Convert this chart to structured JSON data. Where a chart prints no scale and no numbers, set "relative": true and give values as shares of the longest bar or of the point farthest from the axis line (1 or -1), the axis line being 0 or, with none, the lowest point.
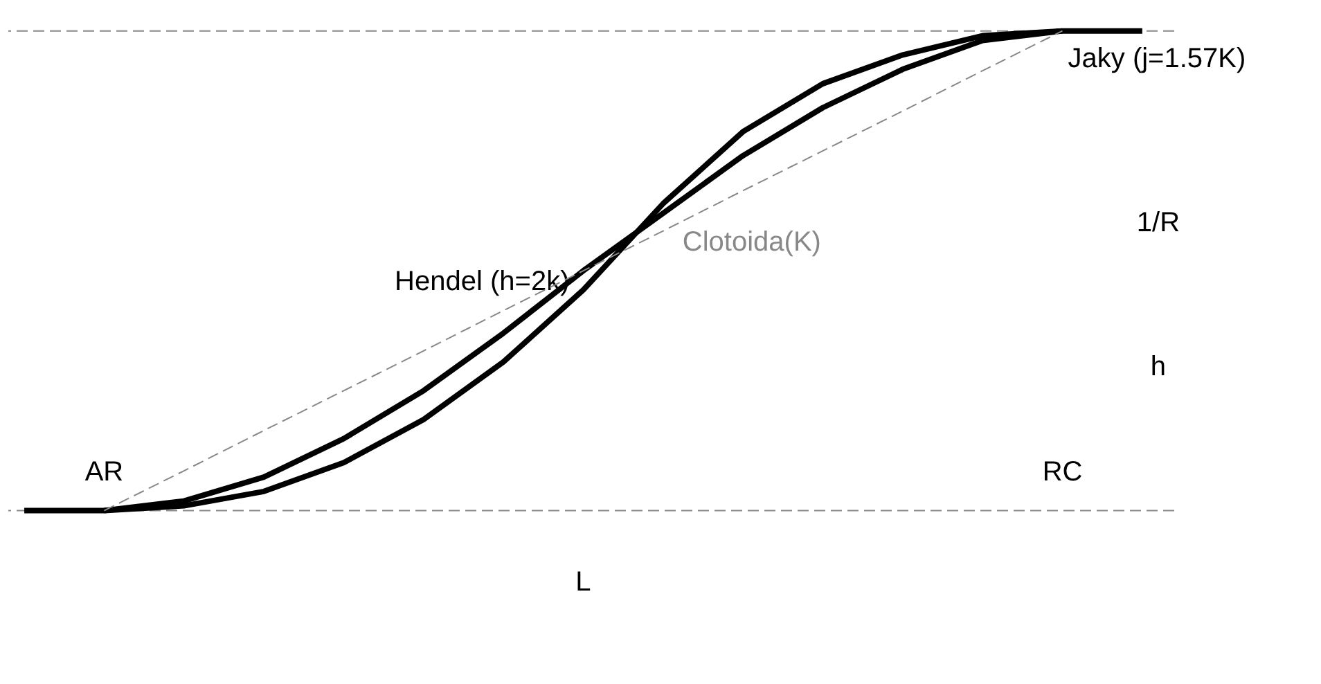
{
  "chart_data": {
    "type": "line",
    "relative": true,
    "categories": [
      null,
      null,
      null,
      null,
      null,
      null,
      null,
      null,
      null,
      null,
      null,
      null,
      null,
      null,
      null
    ],
    "series": [
      {
        "name": "Hendel (h=2k)",
        "color": "#000000",
        "line_style": "solid",
        "values": [
          0,
          0,
          0.01,
          0.04,
          0.1,
          0.19,
          0.31,
          0.46,
          0.64,
          0.79,
          0.89,
          0.95,
          0.99,
          1,
          1
        ]
      },
      {
        "name": "Jaky (j=1.57K)",
        "color": "#000000",
        "line_style": "solid",
        "values": [
          null,
          0,
          0.02,
          0.07,
          0.15,
          0.25,
          0.37,
          0.5,
          0.62,
          0.74,
          0.84,
          0.92,
          0.98,
          1,
          null
        ]
      },
      {
        "name": "Clotoida(K)",
        "color": "#888888",
        "line_style": "dashed",
        "values": [
          null,
          0,
          0.083,
          0.167,
          0.25,
          0.333,
          0.417,
          0.5,
          0.583,
          0.667,
          0.75,
          0.833,
          0.917,
          1,
          null
        ]
      }
    ],
    "ref_lines": [
      {
        "axis": "y",
        "value": 0,
        "line_style": "dashed",
        "color": "#888888"
      },
      {
        "axis": "y",
        "value": 1,
        "line_style": "dashed",
        "color": "#888888"
      }
    ],
    "annotations": [
      "AR",
      "RC",
      "1/R",
      "h",
      "L"
    ],
    "grid": false
  }
}
